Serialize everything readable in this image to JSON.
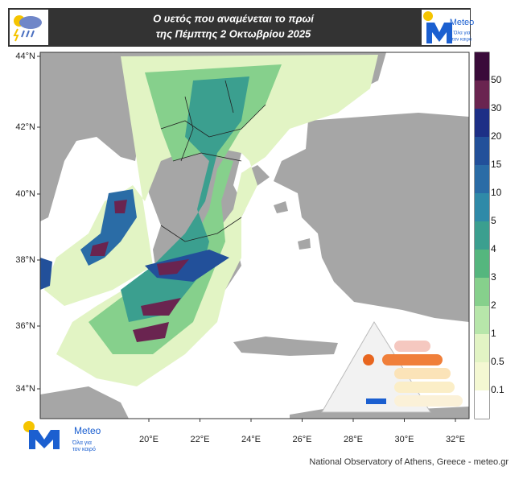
{
  "header": {
    "title_lines": [
      "Ο υετός που αναμένεται το πρωί",
      "της Πέμπτης 2 Οκτωβρίου 2025"
    ],
    "logo": {
      "name": "Meteo",
      "tagline_lines": [
        "Όλα για",
        "τον καιρό"
      ]
    }
  },
  "map": {
    "lat_labels": [
      "44°N",
      "42°N",
      "40°N",
      "38°N",
      "36°N",
      "34°N"
    ],
    "lon_labels": [
      "20°E",
      "22°E",
      "24°E",
      "26°E",
      "28°E",
      "30°E",
      "32°E"
    ]
  },
  "legend": {
    "levels": [
      0.1,
      0.5,
      1,
      2,
      3,
      4,
      5,
      10,
      15,
      20,
      30,
      50
    ],
    "colors": [
      "#ffffff",
      "#f4f8d2",
      "#e2f4c4",
      "#b7e6aa",
      "#86d08c",
      "#55b67e",
      "#3b9f8f",
      "#2f8aa8",
      "#2a6ca6",
      "#22509a",
      "#1d2f86",
      "#6a2450",
      "#3a0b3a"
    ]
  },
  "footer": {
    "credit": "National Observatory of Athens, Greece - meteo.gr"
  }
}
